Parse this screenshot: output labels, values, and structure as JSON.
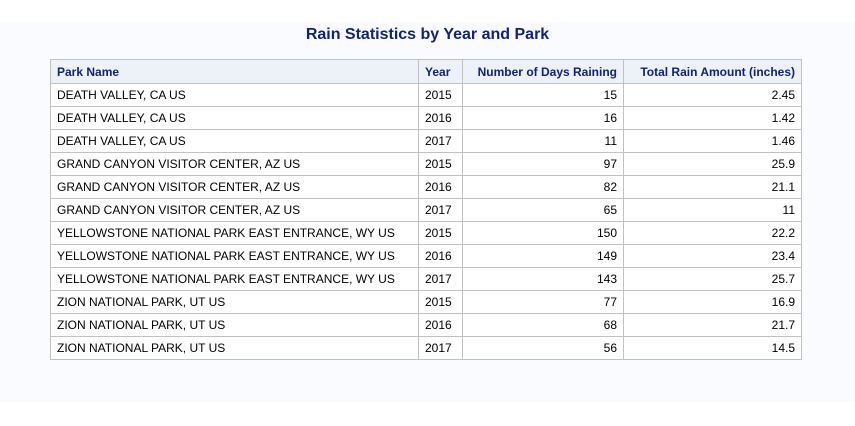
{
  "title": "Rain Statistics by Year and Park",
  "table": {
    "columns": [
      "Park Name",
      "Year",
      "Number of Days Raining",
      "Total Rain Amount (inches)"
    ],
    "rows": [
      [
        "DEATH VALLEY, CA US",
        "2015",
        "15",
        "2.45"
      ],
      [
        "DEATH VALLEY, CA US",
        "2016",
        "16",
        "1.42"
      ],
      [
        "DEATH VALLEY, CA US",
        "2017",
        "11",
        "1.46"
      ],
      [
        "GRAND CANYON VISITOR CENTER, AZ US",
        "2015",
        "97",
        "25.9"
      ],
      [
        "GRAND CANYON VISITOR CENTER, AZ US",
        "2016",
        "82",
        "21.1"
      ],
      [
        "GRAND CANYON VISITOR CENTER, AZ US",
        "2017",
        "65",
        "11"
      ],
      [
        "YELLOWSTONE NATIONAL PARK EAST ENTRANCE, WY US",
        "2015",
        "150",
        "22.2"
      ],
      [
        "YELLOWSTONE NATIONAL PARK EAST ENTRANCE, WY US",
        "2016",
        "149",
        "23.4"
      ],
      [
        "YELLOWSTONE NATIONAL PARK EAST ENTRANCE, WY US",
        "2017",
        "143",
        "25.7"
      ],
      [
        "ZION NATIONAL PARK, UT US",
        "2015",
        "77",
        "16.9"
      ],
      [
        "ZION NATIONAL PARK, UT US",
        "2016",
        "68",
        "21.7"
      ],
      [
        "ZION NATIONAL PARK, UT US",
        "2017",
        "56",
        "14.5"
      ]
    ]
  }
}
